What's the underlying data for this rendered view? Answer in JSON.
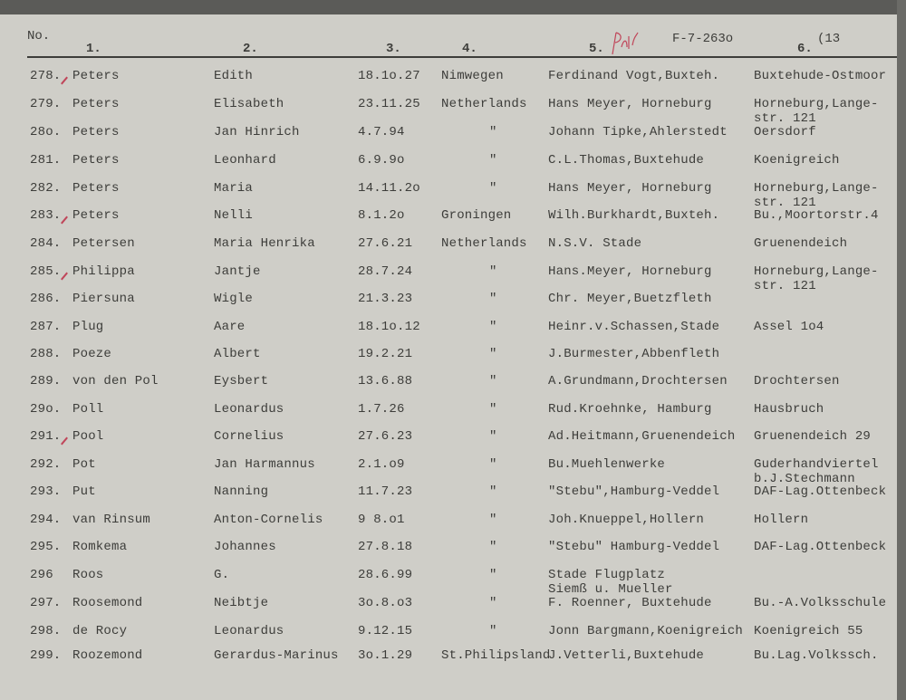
{
  "header": {
    "no_label": "No.",
    "columns": [
      "1.",
      "2.",
      "3.",
      "4.",
      "5.",
      "6."
    ],
    "file_ref": "F-7-263o",
    "page_ref": "(13"
  },
  "colors": {
    "ink": "#3d3d3a",
    "paper": "#cfcec8",
    "red_pencil": "#c0465a"
  },
  "rows": [
    {
      "no": "278.",
      "surname": "Peters",
      "given": "Edith",
      "date": "18.1o.27",
      "place": "Nimwegen",
      "employer": "Ferdinand Vogt,Buxteh.",
      "residence": "Buxtehude-Ostmoor",
      "marked": true
    },
    {
      "no": "279.",
      "surname": "Peters",
      "given": "Elisabeth",
      "date": "23.11.25",
      "place": "Netherlands",
      "employer": "Hans Meyer, Horneburg",
      "residence": "Horneburg,Lange-\nstr. 121",
      "marked": false
    },
    {
      "no": "28o.",
      "surname": "Peters",
      "given": "Jan Hinrich",
      "date": "4.7.94",
      "place": "\"",
      "employer": "Johann Tipke,Ahlerstedt",
      "residence": "Oersdorf",
      "marked": false
    },
    {
      "no": "281.",
      "surname": "Peters",
      "given": "Leonhard",
      "date": "6.9.9o",
      "place": "\"",
      "employer": "C.L.Thomas,Buxtehude",
      "residence": "Koenigreich",
      "marked": false
    },
    {
      "no": "282.",
      "surname": "Peters",
      "given": "Maria",
      "date": "14.11.2o",
      "place": "\"",
      "employer": "Hans Meyer, Horneburg",
      "residence": "Horneburg,Lange-\nstr. 121",
      "marked": false
    },
    {
      "no": "283.",
      "surname": "Peters",
      "given": "Nelli",
      "date": "8.1.2o",
      "place": "Groningen",
      "employer": "Wilh.Burkhardt,Buxteh.",
      "residence": "Bu.,Moortorstr.4",
      "marked": true
    },
    {
      "no": "284.",
      "surname": "Petersen",
      "given": "Maria Henrika",
      "date": "27.6.21",
      "place": "Netherlands",
      "employer": "N.S.V. Stade",
      "residence": "Gruenendeich",
      "marked": false
    },
    {
      "no": "285.",
      "surname": "Philippa",
      "given": "Jantje",
      "date": "28.7.24",
      "place": "\"",
      "employer": "Hans.Meyer, Horneburg",
      "residence": "Horneburg,Lange-\nstr. 121",
      "marked": true
    },
    {
      "no": "286.",
      "surname": "Piersuna",
      "given": "Wigle",
      "date": "21.3.23",
      "place": "\"",
      "employer": "Chr. Meyer,Buetzfleth",
      "residence": "",
      "marked": false
    },
    {
      "no": "287.",
      "surname": "Plug",
      "given": "Aare",
      "date": "18.1o.12",
      "place": "\"",
      "employer": "Heinr.v.Schassen,Stade",
      "residence": "Assel 1o4",
      "marked": false
    },
    {
      "no": "288.",
      "surname": "Poeze",
      "given": "Albert",
      "date": "19.2.21",
      "place": "\"",
      "employer": "J.Burmester,Abbenfleth",
      "residence": "",
      "marked": false
    },
    {
      "no": "289.",
      "surname": "von den Pol",
      "given": "Eysbert",
      "date": "13.6.88",
      "place": "\"",
      "employer": "A.Grundmann,Drochtersen",
      "residence": "Drochtersen",
      "marked": false
    },
    {
      "no": "29o.",
      "surname": "Poll",
      "given": "Leonardus",
      "date": "1.7.26",
      "place": "\"",
      "employer": "Rud.Kroehnke, Hamburg",
      "residence": "Hausbruch",
      "marked": false
    },
    {
      "no": "291.",
      "surname": "Pool",
      "given": "Cornelius",
      "date": "27.6.23",
      "place": "\"",
      "employer": "Ad.Heitmann,Gruenendeich",
      "residence": "Gruenendeich 29",
      "marked": true
    },
    {
      "no": "292.",
      "surname": "Pot",
      "given": "Jan Harmannus",
      "date": "2.1.o9",
      "place": "\"",
      "employer": "Bu.Muehlenwerke",
      "residence": "Guderhandviertel\nb.J.Stechmann",
      "marked": false
    },
    {
      "no": "293.",
      "surname": "Put",
      "given": "Nanning",
      "date": "11.7.23",
      "place": "\"",
      "employer": "\"Stebu\",Hamburg-Veddel",
      "residence": "DAF-Lag.Ottenbeck",
      "marked": false
    },
    {
      "no": "294.",
      "surname": "van Rinsum",
      "given": "Anton-Cornelis",
      "date": "9 8.o1",
      "place": "\"",
      "employer": "Joh.Knueppel,Hollern",
      "residence": "Hollern",
      "marked": false
    },
    {
      "no": "295.",
      "surname": "Romkema",
      "given": "Johannes",
      "date": "27.8.18",
      "place": "\"",
      "employer": "\"Stebu\" Hamburg-Veddel",
      "residence": "DAF-Lag.Ottenbeck",
      "marked": false
    },
    {
      "no": "296",
      "surname": "Roos",
      "given": "G.",
      "date": "28.6.99",
      "place": "\"",
      "employer": "Stade Flugplatz\nSiemß u. Mueller",
      "residence": "",
      "marked": false
    },
    {
      "no": "297.",
      "surname": "Roosemond",
      "given": "Neibtje",
      "date": "3o.8.o3",
      "place": "\"",
      "employer": "F. Roenner, Buxtehude",
      "residence": "Bu.-A.Volksschule",
      "marked": false
    },
    {
      "no": "298.",
      "surname": "de Rocy",
      "given": "Leonardus",
      "date": "9.12.15",
      "place": "\"",
      "employer": "Jonn Bargmann,Koenigreich",
      "residence": "Koenigreich 55",
      "marked": false
    },
    {
      "no": "299.",
      "surname": "Roozemond",
      "given": "Gerardus-Marinus",
      "date": "3o.1.29",
      "place": "St.Philipsland",
      "employer": "J.Vetterli,Buxtehude",
      "residence": "Bu.Lag.Volkssch.",
      "marked": false
    }
  ]
}
